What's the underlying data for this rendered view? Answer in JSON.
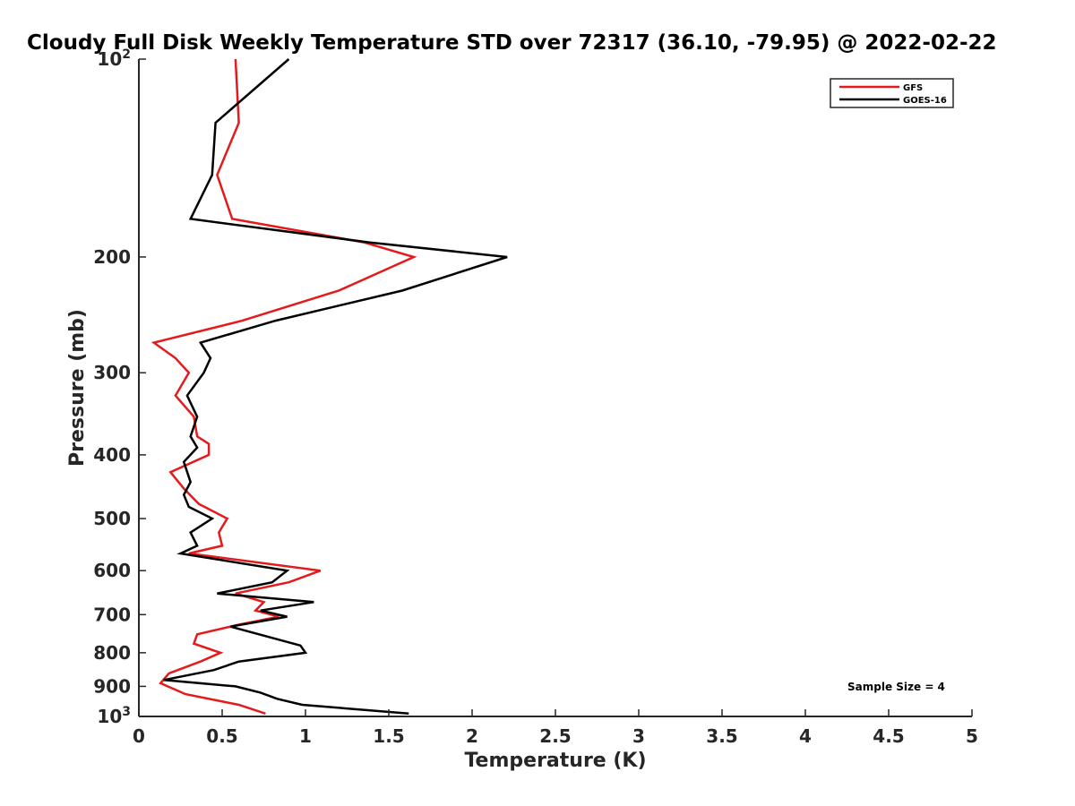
{
  "chart_data": {
    "type": "line",
    "title": "Cloudy Full Disk Weekly Temperature STD over 72317 (36.10, -79.95) @ 2022-02-22",
    "xlabel": "Temperature (K)",
    "ylabel": "Pressure (mb)",
    "xlim": [
      0,
      5
    ],
    "ylim": [
      1000,
      100
    ],
    "y_scale": "log",
    "grid": false,
    "legend_position": "top-right",
    "x_ticks": [
      {
        "value": 0,
        "label": "0"
      },
      {
        "value": 0.5,
        "label": "0.5"
      },
      {
        "value": 1,
        "label": "1"
      },
      {
        "value": 1.5,
        "label": "1.5"
      },
      {
        "value": 2,
        "label": "2"
      },
      {
        "value": 2.5,
        "label": "2.5"
      },
      {
        "value": 3,
        "label": "3"
      },
      {
        "value": 3.5,
        "label": "3.5"
      },
      {
        "value": 4,
        "label": "4"
      },
      {
        "value": 4.5,
        "label": "4.5"
      },
      {
        "value": 5,
        "label": "5"
      }
    ],
    "y_ticks": [
      {
        "value": 100,
        "base": "10",
        "exp": "2"
      },
      {
        "value": 200,
        "base": "200",
        "exp": ""
      },
      {
        "value": 300,
        "base": "300",
        "exp": ""
      },
      {
        "value": 400,
        "base": "400",
        "exp": ""
      },
      {
        "value": 500,
        "base": "500",
        "exp": ""
      },
      {
        "value": 600,
        "base": "600",
        "exp": ""
      },
      {
        "value": 700,
        "base": "700",
        "exp": ""
      },
      {
        "value": 800,
        "base": "800",
        "exp": ""
      },
      {
        "value": 900,
        "base": "900",
        "exp": ""
      },
      {
        "value": 1000,
        "base": "10",
        "exp": "3"
      }
    ],
    "series": [
      {
        "name": "GFS",
        "color": "#e41a1c",
        "points": [
          [
            0.58,
            100
          ],
          [
            0.6,
            125
          ],
          [
            0.47,
            150
          ],
          [
            0.56,
            175
          ],
          [
            1.35,
            190
          ],
          [
            1.65,
            200
          ],
          [
            1.2,
            225
          ],
          [
            0.62,
            250
          ],
          [
            0.09,
            270
          ],
          [
            0.22,
            285
          ],
          [
            0.3,
            300
          ],
          [
            0.22,
            325
          ],
          [
            0.33,
            350
          ],
          [
            0.35,
            375
          ],
          [
            0.42,
            385
          ],
          [
            0.42,
            400
          ],
          [
            0.19,
            425
          ],
          [
            0.27,
            450
          ],
          [
            0.36,
            475
          ],
          [
            0.53,
            500
          ],
          [
            0.48,
            525
          ],
          [
            0.5,
            550
          ],
          [
            0.3,
            565
          ],
          [
            1.09,
            600
          ],
          [
            0.9,
            625
          ],
          [
            0.58,
            650
          ],
          [
            0.75,
            670
          ],
          [
            0.7,
            690
          ],
          [
            0.84,
            705
          ],
          [
            0.6,
            725
          ],
          [
            0.35,
            750
          ],
          [
            0.33,
            775
          ],
          [
            0.49,
            800
          ],
          [
            0.37,
            825
          ],
          [
            0.18,
            860
          ],
          [
            0.13,
            890
          ],
          [
            0.28,
            925
          ],
          [
            0.6,
            960
          ],
          [
            0.76,
            990
          ]
        ]
      },
      {
        "name": "GOES-16",
        "color": "#000000",
        "points": [
          [
            0.9,
            100
          ],
          [
            0.46,
            125
          ],
          [
            0.44,
            150
          ],
          [
            0.31,
            175
          ],
          [
            1.38,
            190
          ],
          [
            2.21,
            200
          ],
          [
            1.58,
            225
          ],
          [
            0.82,
            250
          ],
          [
            0.37,
            270
          ],
          [
            0.43,
            285
          ],
          [
            0.39,
            300
          ],
          [
            0.29,
            325
          ],
          [
            0.35,
            350
          ],
          [
            0.31,
            375
          ],
          [
            0.35,
            390
          ],
          [
            0.27,
            410
          ],
          [
            0.31,
            440
          ],
          [
            0.27,
            460
          ],
          [
            0.3,
            480
          ],
          [
            0.44,
            500
          ],
          [
            0.31,
            525
          ],
          [
            0.35,
            550
          ],
          [
            0.25,
            565
          ],
          [
            0.89,
            600
          ],
          [
            0.8,
            625
          ],
          [
            0.47,
            650
          ],
          [
            1.05,
            670
          ],
          [
            0.73,
            690
          ],
          [
            0.89,
            705
          ],
          [
            0.55,
            730
          ],
          [
            0.97,
            780
          ],
          [
            1.0,
            800
          ],
          [
            0.6,
            825
          ],
          [
            0.45,
            850
          ],
          [
            0.15,
            880
          ],
          [
            0.58,
            900
          ],
          [
            0.73,
            920
          ],
          [
            0.83,
            940
          ],
          [
            0.98,
            960
          ],
          [
            1.62,
            990
          ]
        ]
      }
    ],
    "annotations": [
      {
        "text": "Sample Size = 4",
        "position": "bottom-right"
      }
    ]
  }
}
